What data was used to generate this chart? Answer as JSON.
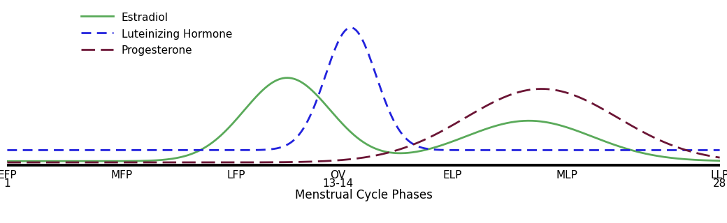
{
  "phase_positions": [
    0,
    4.5,
    9,
    13,
    17.5,
    22,
    28
  ],
  "phase_labels_top": [
    "EFP",
    "MFP",
    "LFP",
    "OV",
    "ELP",
    "MLP",
    "LLP"
  ],
  "phase_labels_bottom": [
    "1",
    "",
    "",
    "13-14",
    "",
    "",
    "28"
  ],
  "xlabel": "Menstrual Cycle Phases",
  "estradiol_color": "#5aaa5a",
  "lh_color": "#2222dd",
  "progesterone_color": "#6b1535",
  "background_color": "#ffffff",
  "legend_labels": [
    "Estradiol",
    "Luteinizing Hormone",
    "Progesterone"
  ],
  "estradiol_params": {
    "peak1_mu": 11.0,
    "peak1_sigma": 1.7,
    "peak1_amp": 0.68,
    "peak2_mu": 20.5,
    "peak2_sigma": 2.5,
    "peak2_amp": 0.33,
    "baseline": 0.03
  },
  "lh_params": {
    "peak_mu": 13.5,
    "peak_sigma": 1.0,
    "peak_amp": 1.0,
    "baseline": 0.12
  },
  "prog_params": {
    "peak_mu": 21.0,
    "peak_sigma": 3.0,
    "peak_amp": 0.6,
    "baseline": 0.02
  }
}
